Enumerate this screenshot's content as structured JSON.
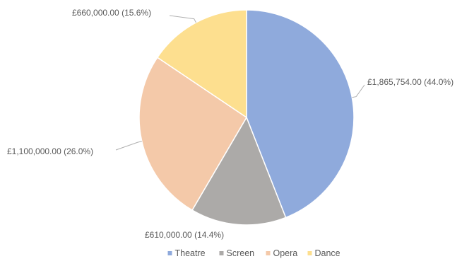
{
  "chart_data": {
    "type": "pie",
    "series": [
      {
        "name": "Theatre",
        "value": 1865754.0,
        "label": "£1,865,754.00 (44.0%)",
        "color": "#8faadc"
      },
      {
        "name": "Screen",
        "value": 610000.0,
        "label": "£610,000.00 (14.4%)",
        "color": "#acaaa8"
      },
      {
        "name": "Opera",
        "value": 1100000.0,
        "label": "£1,100,000.00 (26.0%)",
        "color": "#f4c9a9"
      },
      {
        "name": "Dance",
        "value": 660000.0,
        "label": "£660,000.00 (15.6%)",
        "color": "#fddf8f"
      }
    ],
    "legend_position": "bottom",
    "start_angle": "12 o'clock",
    "direction": "clockwise"
  }
}
